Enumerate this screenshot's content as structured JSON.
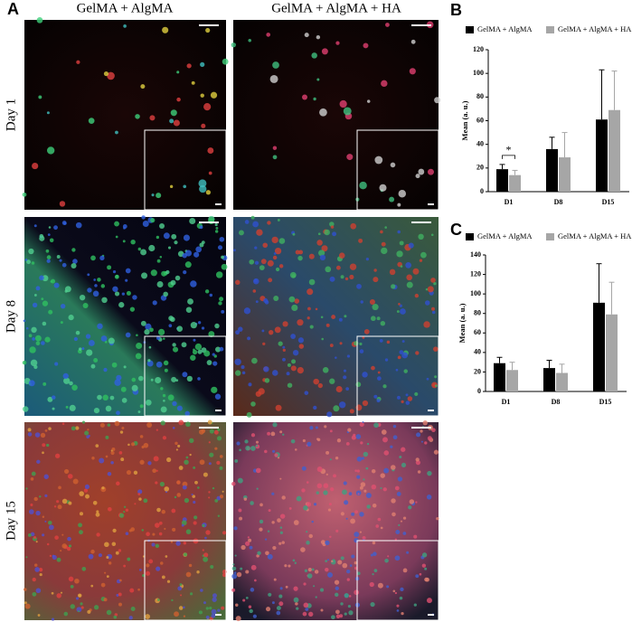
{
  "figure": {
    "panel_labels": [
      "A",
      "B",
      "C"
    ],
    "column_titles": [
      "GelMA + AlgMA",
      "GelMA + AlgMA + HA"
    ],
    "row_labels": [
      "Day 1",
      "Day 8",
      "Day 15"
    ]
  },
  "chart_data": [
    {
      "type": "bar",
      "ylabel": "Mean (a. u.)",
      "categories": [
        "D1",
        "D8",
        "D15"
      ],
      "series": [
        {
          "name": "GelMA + AlgMA",
          "color": "#000000",
          "values": [
            19,
            36,
            61
          ],
          "errors": [
            4,
            10,
            42
          ]
        },
        {
          "name": "GelMA + AlgMA + HA",
          "color": "#a6a6a6",
          "values": [
            14,
            29,
            69
          ],
          "errors": [
            4,
            21,
            33
          ]
        }
      ],
      "ylim": [
        0,
        120
      ],
      "yticks": [
        0,
        20,
        40,
        60,
        80,
        100,
        120
      ],
      "annotation": "*"
    },
    {
      "type": "bar",
      "ylabel": "Mean (a. u.)",
      "categories": [
        "D1",
        "D8",
        "D15"
      ],
      "series": [
        {
          "name": "GelMA + AlgMA",
          "color": "#000000",
          "values": [
            29,
            24,
            91
          ],
          "errors": [
            6,
            8,
            40
          ]
        },
        {
          "name": "GelMA + AlgMA + HA",
          "color": "#a6a6a6",
          "values": [
            22,
            19,
            79
          ],
          "errors": [
            8,
            9,
            33
          ]
        }
      ],
      "ylim": [
        0,
        140
      ],
      "yticks": [
        0,
        20,
        40,
        60,
        80,
        100,
        120,
        140
      ]
    }
  ]
}
